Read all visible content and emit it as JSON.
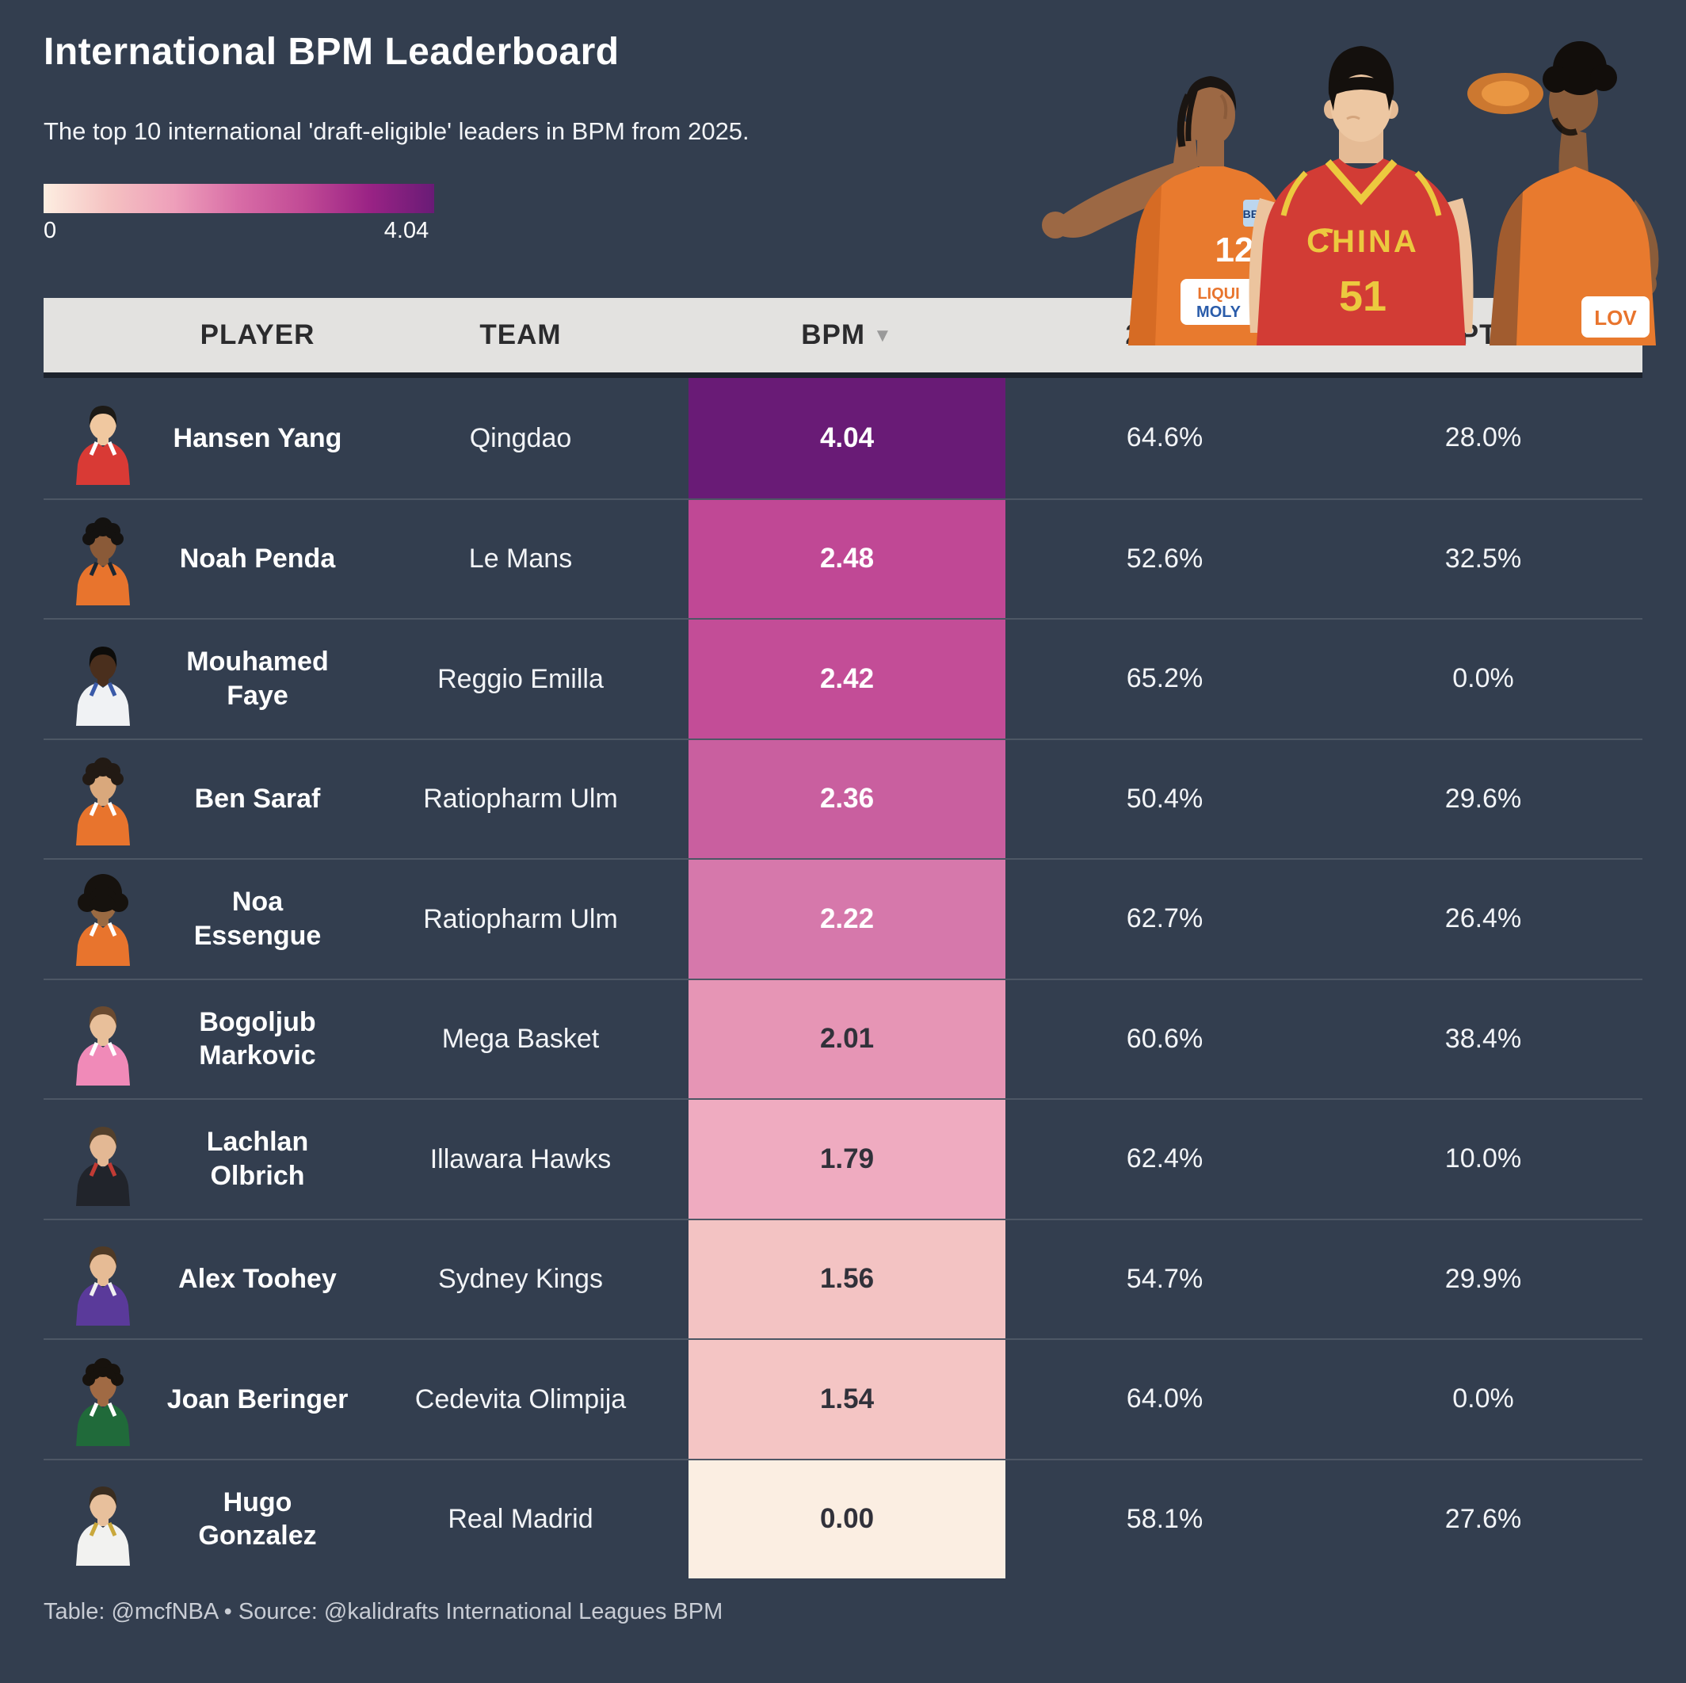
{
  "title": "International BPM Leaderboard",
  "subtitle": "The top 10 international 'draft-eligible' leaders in BPM from 2025.",
  "legend": {
    "min_label": "0",
    "max_label": "4.04",
    "gradient": [
      "#fdeee1",
      "#f5c2c2",
      "#ee9fba",
      "#d86ca6",
      "#c14a95",
      "#9a2385",
      "#691b76"
    ]
  },
  "hero": {
    "left_jersey_number": "12",
    "left_sponsor_line1": "LIQUI",
    "left_sponsor_line2": "MOLY",
    "left_patch": "BBL",
    "center_jersey_text": "CHINA",
    "center_jersey_number": "51",
    "right_sponsor": "LOV"
  },
  "table": {
    "headers": {
      "player": "PLAYER",
      "team": "TEAM",
      "bpm": "BPM",
      "sort_icon": "▼",
      "pt2": "2PT%",
      "pt3": "3PT%"
    },
    "rows": [
      {
        "name": "Hansen Yang",
        "team": "Qingdao",
        "bpm": "4.04",
        "pt2": "64.6%",
        "pt3": "28.0%",
        "bpm_bg": "#691b76",
        "bpm_fg": "#ffffff",
        "avatar": {
          "skin": "#f0c8a0",
          "hair": "#1d1a16",
          "jersey": "#d93a35",
          "trim": "#ffffff",
          "hair_type": "short"
        }
      },
      {
        "name": "Noah Penda",
        "team": "Le Mans",
        "bpm": "2.48",
        "pt2": "52.6%",
        "pt3": "32.5%",
        "bpm_bg": "#c04895",
        "bpm_fg": "#ffffff",
        "avatar": {
          "skin": "#8a5a38",
          "hair": "#141210",
          "jersey": "#e8742d",
          "trim": "#1c2733",
          "hair_type": "curly"
        }
      },
      {
        "name": "Mouhamed Faye",
        "team": "Reggio Emilla",
        "bpm": "2.42",
        "pt2": "65.2%",
        "pt3": "0.0%",
        "bpm_bg": "#c34d97",
        "bpm_fg": "#ffffff",
        "avatar": {
          "skin": "#4a2f1d",
          "hair": "#0d0c0a",
          "jersey": "#f0f2f4",
          "trim": "#3a5aa8",
          "hair_type": "short"
        }
      },
      {
        "name": "Ben Saraf",
        "team": "Ratiopharm Ulm",
        "bpm": "2.36",
        "pt2": "50.4%",
        "pt3": "29.6%",
        "bpm_bg": "#c95f9f",
        "bpm_fg": "#ffffff",
        "avatar": {
          "skin": "#d9a87c",
          "hair": "#221a14",
          "jersey": "#e8742d",
          "trim": "#ffffff",
          "hair_type": "curly"
        }
      },
      {
        "name": "Noa Essengue",
        "team": "Ratiopharm Ulm",
        "bpm": "2.22",
        "pt2": "62.7%",
        "pt3": "26.4%",
        "bpm_bg": "#d678ab",
        "bpm_fg": "#ffffff",
        "avatar": {
          "skin": "#9a6a42",
          "hair": "#16120e",
          "jersey": "#e8742d",
          "trim": "#ffffff",
          "hair_type": "afro"
        }
      },
      {
        "name": "Bogoljub Markovic",
        "team": "Mega Basket",
        "bpm": "2.01",
        "pt2": "60.6%",
        "pt3": "38.4%",
        "bpm_bg": "#e695b5",
        "bpm_fg": "#31313a",
        "avatar": {
          "skin": "#e8bf9a",
          "hair": "#6a4a30",
          "jersey": "#f08ab8",
          "trim": "#ffffff",
          "hair_type": "short"
        }
      },
      {
        "name": "Lachlan Olbrich",
        "team": "Illawara Hawks",
        "bpm": "1.79",
        "pt2": "62.4%",
        "pt3": "10.0%",
        "bpm_bg": "#efabc0",
        "bpm_fg": "#31313a",
        "avatar": {
          "skin": "#e3b894",
          "hair": "#53402c",
          "jersey": "#21242b",
          "trim": "#c23b35",
          "hair_type": "short"
        }
      },
      {
        "name": "Alex Toohey",
        "team": "Sydney Kings",
        "bpm": "1.56",
        "pt2": "54.7%",
        "pt3": "29.9%",
        "bpm_bg": "#f3c3c3",
        "bpm_fg": "#31313a",
        "avatar": {
          "skin": "#e6bb95",
          "hair": "#4f3a26",
          "jersey": "#5a3a9a",
          "trim": "#f0f0f0",
          "hair_type": "short"
        }
      },
      {
        "name": "Joan Beringer",
        "team": "Cedevita Olimpija",
        "bpm": "1.54",
        "pt2": "64.0%",
        "pt3": "0.0%",
        "bpm_bg": "#f4c5c4",
        "bpm_fg": "#31313a",
        "avatar": {
          "skin": "#a06a44",
          "hair": "#17120d",
          "jersey": "#206a3a",
          "trim": "#ffffff",
          "hair_type": "curly"
        }
      },
      {
        "name": "Hugo Gonzalez",
        "team": "Real Madrid",
        "bpm": "0.00",
        "pt2": "58.1%",
        "pt3": "27.6%",
        "bpm_bg": "#fbeee2",
        "bpm_fg": "#31313a",
        "avatar": {
          "skin": "#e8c09c",
          "hair": "#3a2d20",
          "jersey": "#f2f2f0",
          "trim": "#c9a83c",
          "hair_type": "short"
        }
      }
    ]
  },
  "footer": "Table: @mcfNBA • Source: @kalidrafts International Leagues BPM",
  "colors": {
    "background": "#333e4f",
    "header_bg": "#e3e2e0",
    "header_text": "#2b2b2d",
    "row_divider": "rgba(255,255,255,0.13)",
    "accent_max": "#691b76",
    "accent_min": "#fbeee2"
  },
  "chart_data": {
    "type": "table",
    "title": "International BPM Leaderboard",
    "subtitle": "The top 10 international 'draft-eligible' leaders in BPM from 2025.",
    "color_scale": {
      "label_min": 0,
      "label_max": 4.04,
      "low_color": "#fdeee1",
      "high_color": "#691b76",
      "encoded_column": "BPM"
    },
    "columns": [
      "PLAYER",
      "TEAM",
      "BPM",
      "2PT%",
      "3PT%"
    ],
    "sorted_by": {
      "column": "BPM",
      "direction": "desc"
    },
    "rows": [
      [
        "Hansen Yang",
        "Qingdao",
        4.04,
        64.6,
        28.0
      ],
      [
        "Noah Penda",
        "Le Mans",
        2.48,
        52.6,
        32.5
      ],
      [
        "Mouhamed Faye",
        "Reggio Emilla",
        2.42,
        65.2,
        0.0
      ],
      [
        "Ben Saraf",
        "Ratiopharm Ulm",
        2.36,
        50.4,
        29.6
      ],
      [
        "Noa Essengue",
        "Ratiopharm Ulm",
        2.22,
        62.7,
        26.4
      ],
      [
        "Bogoljub Markovic",
        "Mega Basket",
        2.01,
        60.6,
        38.4
      ],
      [
        "Lachlan Olbrich",
        "Illawara Hawks",
        1.79,
        62.4,
        10.0
      ],
      [
        "Alex Toohey",
        "Sydney Kings",
        1.56,
        54.7,
        29.9
      ],
      [
        "Joan Beringer",
        "Cedevita Olimpija",
        1.54,
        64.0,
        0.0
      ],
      [
        "Hugo Gonzalez",
        "Real Madrid",
        0.0,
        58.1,
        27.6
      ]
    ],
    "source": "Table: @mcfNBA • Source: @kalidrafts International Leagues BPM"
  }
}
